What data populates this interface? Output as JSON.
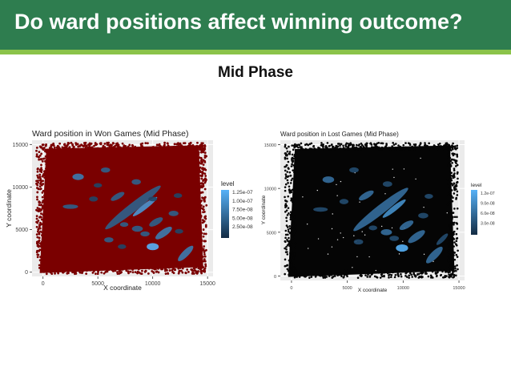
{
  "slide": {
    "title": "Do ward positions affect winning outcome?",
    "subtitle": "Mid Phase"
  },
  "colors": {
    "header_bg": "#2e7d4f",
    "accent_line": "#8bc34a",
    "won_points": "#7a0000",
    "lost_points": "#050505",
    "level_low": "#132b43",
    "level_high": "#56b1f7"
  },
  "chart_data": [
    {
      "type": "density_contour_over_scatter",
      "title": "Ward position in Won Games (Mid Phase)",
      "xlabel": "X coordinate",
      "ylabel": "Y coordinate",
      "xlim": [
        -1000,
        15500
      ],
      "ylim": [
        -500,
        15500
      ],
      "x_ticks": [
        0,
        5000,
        10000,
        15000
      ],
      "x_tick_labels": [
        "0",
        "5000",
        "10000",
        "15000"
      ],
      "y_ticks": [
        0,
        5000,
        10000,
        15000
      ],
      "y_tick_labels": [
        "0",
        "5000",
        "10000",
        "15000"
      ],
      "point_color": "dark red",
      "legend": {
        "title": "level",
        "position": "right",
        "entries": [
          "1.25e-07",
          "1.00e-07",
          "7.50e-08",
          "5.00e-08",
          "2.50e-08"
        ],
        "values": [
          1.25e-07,
          1e-07,
          7.5e-08,
          5e-08,
          2.5e-08
        ]
      },
      "hotspots": [
        {
          "x": 8200,
          "y": 7600,
          "rx": 3200,
          "ry": 520,
          "angle": -38,
          "level": 5e-08
        },
        {
          "x": 9300,
          "y": 7700,
          "rx": 1400,
          "ry": 300,
          "angle": -38,
          "level": 1e-07
        },
        {
          "x": 6800,
          "y": 8900,
          "rx": 700,
          "ry": 330,
          "angle": -30,
          "level": 5e-08
        },
        {
          "x": 10300,
          "y": 5900,
          "rx": 700,
          "ry": 360,
          "angle": -30,
          "level": 5e-08
        },
        {
          "x": 10000,
          "y": 3000,
          "rx": 550,
          "ry": 420,
          "angle": 0,
          "level": 1.25e-07
        },
        {
          "x": 3200,
          "y": 11200,
          "rx": 520,
          "ry": 380,
          "angle": 0,
          "level": 7.5e-08
        },
        {
          "x": 13000,
          "y": 2200,
          "rx": 950,
          "ry": 380,
          "angle": -45,
          "level": 7.5e-08
        },
        {
          "x": 2500,
          "y": 7700,
          "rx": 700,
          "ry": 260,
          "angle": 0,
          "level": 5e-08
        },
        {
          "x": 5700,
          "y": 12000,
          "rx": 420,
          "ry": 300,
          "angle": 0,
          "level": 5e-08
        },
        {
          "x": 8500,
          "y": 10600,
          "rx": 420,
          "ry": 320,
          "angle": 0,
          "level": 5e-08
        },
        {
          "x": 11900,
          "y": 6900,
          "rx": 450,
          "ry": 320,
          "angle": 0,
          "level": 5e-08
        },
        {
          "x": 6000,
          "y": 3800,
          "rx": 420,
          "ry": 300,
          "angle": 0,
          "level": 5e-08
        },
        {
          "x": 8600,
          "y": 5100,
          "rx": 500,
          "ry": 350,
          "angle": 0,
          "level": 5e-08
        },
        {
          "x": 11000,
          "y": 4600,
          "rx": 900,
          "ry": 400,
          "angle": -35,
          "level": 7.5e-08
        },
        {
          "x": 9300,
          "y": 4500,
          "rx": 420,
          "ry": 300,
          "angle": 0,
          "level": 5e-08
        },
        {
          "x": 7400,
          "y": 5600,
          "rx": 380,
          "ry": 280,
          "angle": 0,
          "level": 5e-08
        },
        {
          "x": 4600,
          "y": 8600,
          "rx": 400,
          "ry": 300,
          "angle": 0,
          "level": 2.5e-08
        },
        {
          "x": 5000,
          "y": 10200,
          "rx": 380,
          "ry": 260,
          "angle": 0,
          "level": 2.5e-08
        },
        {
          "x": 12300,
          "y": 9000,
          "rx": 380,
          "ry": 280,
          "angle": 0,
          "level": 2.5e-08
        },
        {
          "x": 7200,
          "y": 3000,
          "rx": 380,
          "ry": 280,
          "angle": 0,
          "level": 2.5e-08
        },
        {
          "x": 10000,
          "y": 8600,
          "rx": 400,
          "ry": 280,
          "angle": 0,
          "level": 2.5e-08
        },
        {
          "x": 12400,
          "y": 4800,
          "rx": 380,
          "ry": 280,
          "angle": 0,
          "level": 2.5e-08
        }
      ]
    },
    {
      "type": "density_contour_over_scatter",
      "title": "Ward position in Lost Games (Mid Phase)",
      "xlabel": "X coordinate",
      "ylabel": "Y coordinate",
      "xlim": [
        -1000,
        15500
      ],
      "ylim": [
        -500,
        15500
      ],
      "x_ticks": [
        0,
        5000,
        10000,
        15000
      ],
      "x_tick_labels": [
        "0",
        "5000",
        "10000",
        "15000"
      ],
      "y_ticks": [
        0,
        5000,
        10000,
        15000
      ],
      "y_tick_labels": [
        "0",
        "5000",
        "10000",
        "15000"
      ],
      "point_color": "black",
      "legend": {
        "title": "level",
        "position": "right",
        "entries": [
          "1.2e-07",
          "9.0e-08",
          "6.0e-08",
          "3.0e-08"
        ],
        "values": [
          1.2e-07,
          9e-08,
          6e-08,
          3e-08
        ]
      },
      "hotspots": [
        {
          "x": 8000,
          "y": 7600,
          "rx": 3100,
          "ry": 520,
          "angle": -38,
          "level": 6e-08
        },
        {
          "x": 9200,
          "y": 7700,
          "rx": 1300,
          "ry": 300,
          "angle": -38,
          "level": 9e-08
        },
        {
          "x": 6700,
          "y": 9200,
          "rx": 750,
          "ry": 350,
          "angle": -30,
          "level": 6e-08
        },
        {
          "x": 10300,
          "y": 5800,
          "rx": 700,
          "ry": 360,
          "angle": -30,
          "level": 6e-08
        },
        {
          "x": 9900,
          "y": 3200,
          "rx": 550,
          "ry": 420,
          "angle": 0,
          "level": 1.2e-07
        },
        {
          "x": 3300,
          "y": 11000,
          "rx": 520,
          "ry": 380,
          "angle": 0,
          "level": 6e-08
        },
        {
          "x": 12800,
          "y": 2400,
          "rx": 1000,
          "ry": 420,
          "angle": -45,
          "level": 6e-08
        },
        {
          "x": 2600,
          "y": 7600,
          "rx": 650,
          "ry": 260,
          "angle": 0,
          "level": 3e-08
        },
        {
          "x": 5600,
          "y": 12100,
          "rx": 420,
          "ry": 300,
          "angle": 0,
          "level": 3e-08
        },
        {
          "x": 8600,
          "y": 10500,
          "rx": 420,
          "ry": 320,
          "angle": 0,
          "level": 3e-08
        },
        {
          "x": 11800,
          "y": 6900,
          "rx": 450,
          "ry": 320,
          "angle": 0,
          "level": 3e-08
        },
        {
          "x": 6000,
          "y": 3900,
          "rx": 420,
          "ry": 300,
          "angle": 0,
          "level": 3e-08
        },
        {
          "x": 8500,
          "y": 5000,
          "rx": 500,
          "ry": 350,
          "angle": 0,
          "level": 6e-08
        },
        {
          "x": 11200,
          "y": 4500,
          "rx": 900,
          "ry": 400,
          "angle": -35,
          "level": 6e-08
        },
        {
          "x": 9200,
          "y": 4300,
          "rx": 420,
          "ry": 300,
          "angle": 0,
          "level": 3e-08
        },
        {
          "x": 7300,
          "y": 5500,
          "rx": 380,
          "ry": 280,
          "angle": 0,
          "level": 3e-08
        },
        {
          "x": 4700,
          "y": 8500,
          "rx": 400,
          "ry": 300,
          "angle": 0,
          "level": 3e-08
        },
        {
          "x": 12300,
          "y": 9100,
          "rx": 380,
          "ry": 280,
          "angle": 0,
          "level": 3e-08
        },
        {
          "x": 13500,
          "y": 4200,
          "rx": 700,
          "ry": 260,
          "angle": -45,
          "level": 3e-08
        }
      ]
    }
  ]
}
